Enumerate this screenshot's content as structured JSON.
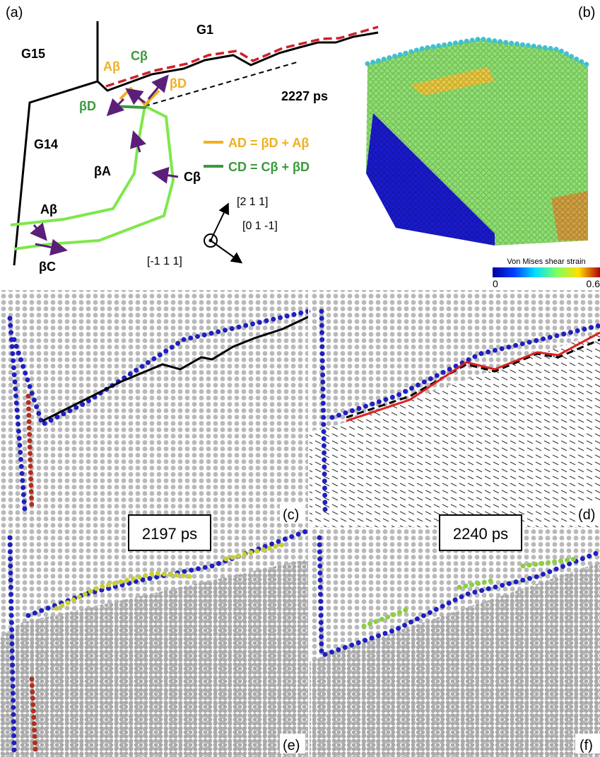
{
  "panel_a": {
    "label": "(a)",
    "grains": [
      "G15",
      "G1",
      "G14"
    ],
    "top_labels": {
      "a_beta": "Aβ",
      "c_beta": "Cβ",
      "beta_d_orange": "βD",
      "beta_d_green": "βD"
    },
    "time": "2227 ps",
    "legend": [
      "AD = βD + Aβ",
      "CD = Cβ + βD"
    ],
    "loop_labels": {
      "beta_a": "βA",
      "c_beta": "Cβ",
      "a_beta": "Aβ",
      "beta_c": "βC"
    },
    "directions": [
      "[2 1 1]",
      "[0 1 -1]",
      "[-1 1 1]"
    ]
  },
  "panel_b": {
    "label": "(b)",
    "colorbar": {
      "title": "Von Mises shear strain",
      "min": "0",
      "max": "0.6"
    }
  },
  "panel_c": {
    "label": "(c)"
  },
  "panel_d": {
    "label": "(d)"
  },
  "panel_e": {
    "label": "(e)",
    "time": "2197 ps"
  },
  "panel_f": {
    "label": "(f)",
    "time": "2240 ps"
  }
}
